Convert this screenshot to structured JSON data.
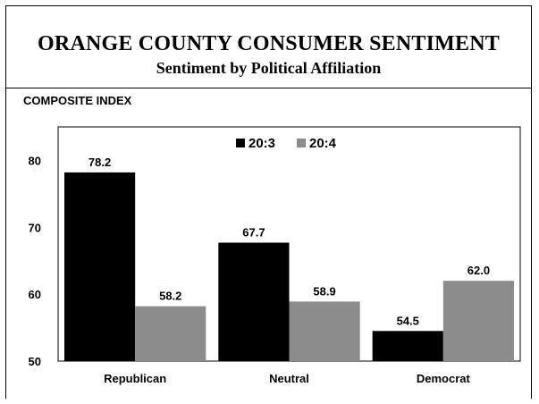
{
  "header": {
    "title": "ORANGE COUNTY CONSUMER SENTIMENT",
    "subtitle": "Sentiment by Political Affiliation"
  },
  "chart_data": {
    "type": "bar",
    "title": "COMPOSITE INDEX",
    "categories": [
      "Republican",
      "Neutral",
      "Democrat"
    ],
    "series": [
      {
        "name": "20:3",
        "values": [
          78.2,
          67.7,
          54.5
        ],
        "color": "#000000"
      },
      {
        "name": "20:4",
        "values": [
          58.2,
          58.9,
          62.0
        ],
        "color": "#8c8c8c"
      }
    ],
    "ylim": [
      50,
      85
    ],
    "yticks": [
      50,
      60,
      70,
      80
    ],
    "value_labels": [
      [
        "78.2",
        "67.7",
        "54.5"
      ],
      [
        "58.2",
        "58.9",
        "62.0"
      ]
    ],
    "legend": "top-center",
    "grid": false
  }
}
